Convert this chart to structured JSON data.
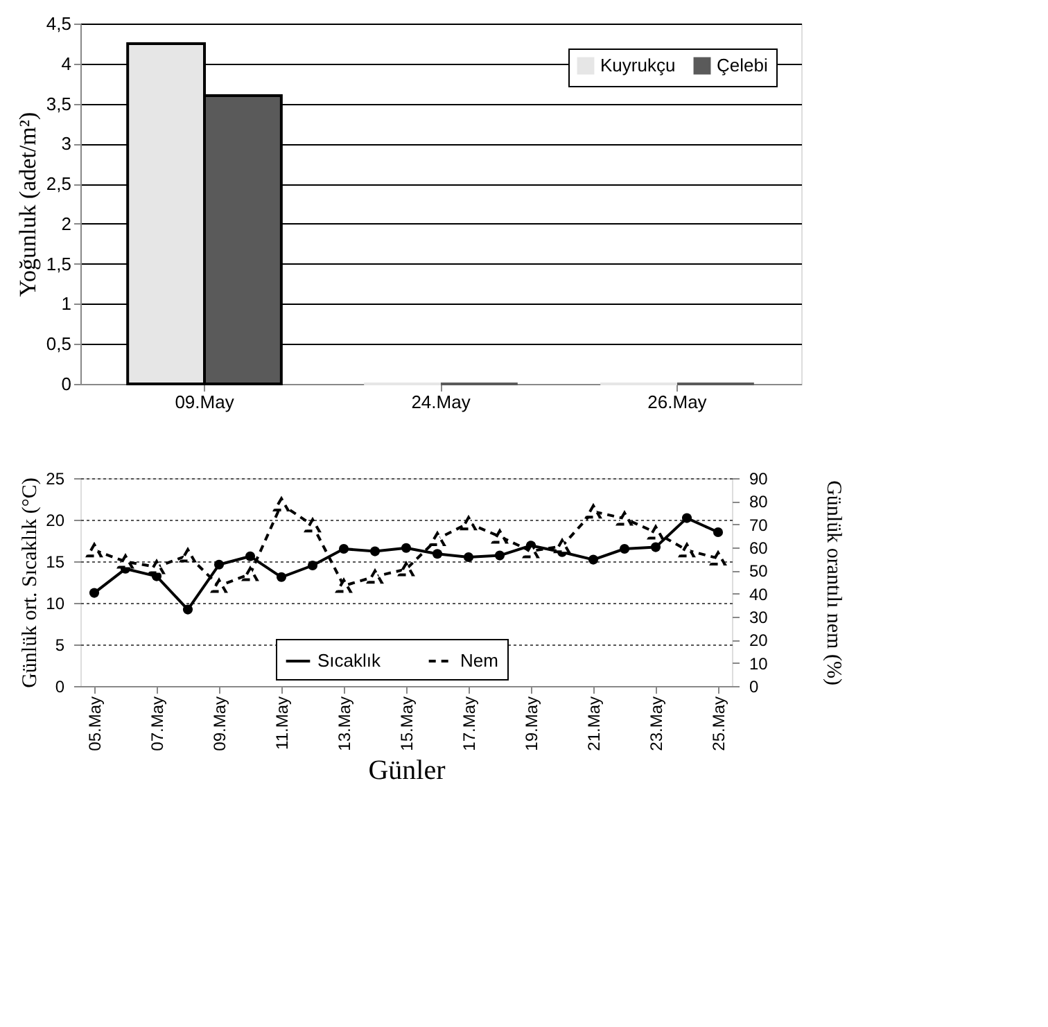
{
  "chart_data": [
    {
      "type": "bar",
      "ylabel": "Yoğunluk (adet/m²)",
      "categories": [
        "09.May",
        "24.May",
        "26.May"
      ],
      "series": [
        {
          "name": "Kuyrukçu",
          "color": "#e6e6e6",
          "values": [
            4.25,
            0,
            0
          ]
        },
        {
          "name": "Çelebi",
          "color": "#5a5a5a",
          "values": [
            3.6,
            0,
            0
          ]
        }
      ],
      "ylim": [
        0,
        4.5
      ],
      "yticks": [
        0,
        {
          "value": 0.5,
          "label": "0,5"
        },
        1,
        {
          "value": 1.5,
          "label": "1,5"
        },
        2,
        {
          "value": 2.5,
          "label": "2,5"
        },
        3,
        {
          "value": 3.5,
          "label": "3,5"
        },
        4,
        {
          "value": 4.5,
          "label": "4,5"
        }
      ],
      "grid": "y",
      "legend": "top right"
    },
    {
      "type": "line",
      "xlabel": "Günler",
      "ylabel": "Günlük ort. Sıcaklık (°C)",
      "y2label": "Günlük orantılı nem (%)",
      "categories": [
        "05.May",
        null,
        "07.May",
        null,
        "09.May",
        null,
        "11.May",
        null,
        "13.May",
        null,
        "15.May",
        null,
        "17.May",
        null,
        "19.May",
        null,
        "21.May",
        null,
        "23.May",
        null,
        "25.May"
      ],
      "series": [
        {
          "name": "Sıcaklık",
          "color": "#000000",
          "marker": "circle",
          "line_style": "solid",
          "values": [
            11.2,
            14.1,
            13.2,
            9.2,
            14.6,
            15.6,
            13.1,
            14.5,
            16.5,
            16.2,
            16.6,
            15.9,
            15.5,
            15.7,
            16.9,
            16.1,
            15.2,
            16.5,
            16.7,
            20.2,
            18.5
          ]
        },
        {
          "name": "Nem",
          "color": "#000000",
          "marker": "triangle",
          "line_style": "dashed",
          "axis": "y2",
          "values": [
            58.8,
            53.9,
            51.5,
            56.6,
            43.4,
            48.5,
            78.7,
            69.6,
            43.4,
            47.4,
            50.6,
            63.7,
            70.5,
            64.7,
            58.4,
            60.6,
            75.6,
            72.5,
            66.5,
            58.8,
            55.3
          ]
        }
      ],
      "ylim": [
        0,
        25
      ],
      "yticks": [
        0,
        5,
        10,
        15,
        20,
        25
      ],
      "y2lim": [
        0,
        90
      ],
      "y2ticks": [
        0,
        10,
        20,
        30,
        40,
        50,
        60,
        70,
        80,
        90
      ],
      "grid": "y",
      "legend": "bottom"
    }
  ]
}
